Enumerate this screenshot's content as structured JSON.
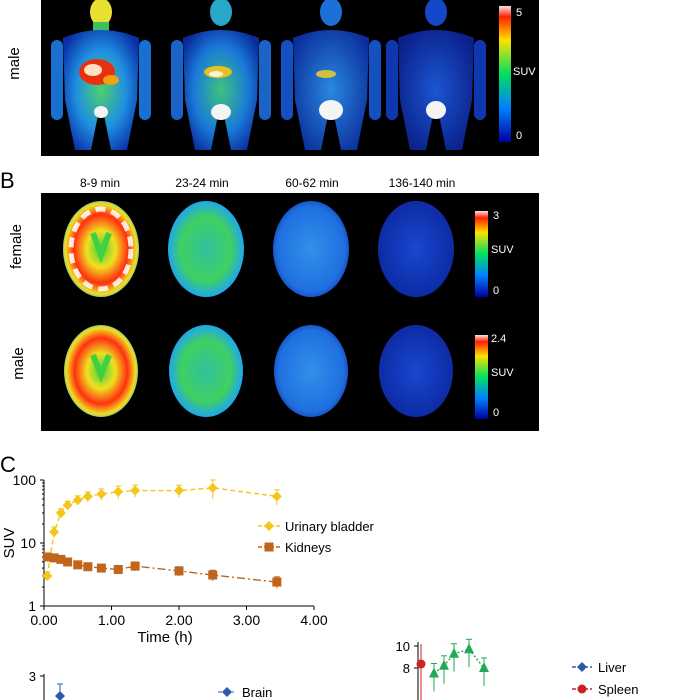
{
  "panelA": {
    "row_label": "male",
    "colorbar": {
      "max": "5",
      "mid": "SUV",
      "min": "0"
    }
  },
  "panelB": {
    "label": "B",
    "times": [
      "8-9 min",
      "23-24 min",
      "60-62 min",
      "136-140 min"
    ],
    "rows": [
      {
        "label": "female",
        "cbar_max": "3",
        "cbar_mid": "SUV",
        "cbar_min": "0"
      },
      {
        "label": "male",
        "cbar_max": "2.4",
        "cbar_mid": "SUV",
        "cbar_min": "0"
      }
    ]
  },
  "panelC": {
    "label": "C",
    "chart_data": [
      {
        "type": "line",
        "ylabel": "SUV",
        "xlabel": "Time (h)",
        "yscale": "log",
        "ylim": [
          1,
          100
        ],
        "xlim": [
          0,
          4
        ],
        "x_ticks": [
          "0.00",
          "1.00",
          "2.00",
          "3.00",
          "4.00"
        ],
        "y_ticks": [
          "1",
          "10",
          "100"
        ],
        "legend_position": "right",
        "series": [
          {
            "name": "Urinary bladder",
            "color": "#f5c518",
            "marker": "diamond",
            "x": [
              0.05,
              0.15,
              0.25,
              0.35,
              0.5,
              0.65,
              0.85,
              1.1,
              1.35,
              2.0,
              2.5,
              3.45
            ],
            "y": [
              3,
              15,
              30,
              40,
              48,
              55,
              60,
              65,
              68,
              68,
              75,
              55
            ],
            "err": [
              0.5,
              3,
              5,
              6,
              8,
              10,
              12,
              15,
              15,
              15,
              25,
              15
            ]
          },
          {
            "name": "Kidneys",
            "color": "#c0651b",
            "marker": "square",
            "x": [
              0.05,
              0.15,
              0.25,
              0.35,
              0.5,
              0.65,
              0.85,
              1.1,
              1.35,
              2.0,
              2.5,
              3.45
            ],
            "y": [
              6,
              5.8,
              5.5,
              5.0,
              4.5,
              4.2,
              4.0,
              3.8,
              4.3,
              3.6,
              3.1,
              2.4
            ],
            "err": [
              0.3,
              0.3,
              0.3,
              0.3,
              0.3,
              0.3,
              0.3,
              0.4,
              0.7,
              0.6,
              0.6,
              0.5
            ]
          }
        ]
      },
      {
        "type": "line",
        "y_ticks": [
          "3"
        ],
        "series": [
          {
            "name": "Brain",
            "color": "#2a5ba8",
            "marker": "diamond"
          }
        ]
      },
      {
        "type": "line",
        "y_ticks": [
          "8",
          "10"
        ],
        "series": [
          {
            "name": "Liver",
            "color": "#2a5ba8",
            "marker": "diamond"
          },
          {
            "name": "Spleen",
            "color": "#cc2222",
            "marker": "circle"
          },
          {
            "name": "",
            "color": "#22aa55",
            "marker": "triangle",
            "x": [
              0.1,
              0.2,
              0.3,
              0.45,
              0.6
            ],
            "y": [
              7.5,
              8.2,
              9.3,
              9.7,
              8
            ]
          }
        ]
      }
    ]
  }
}
